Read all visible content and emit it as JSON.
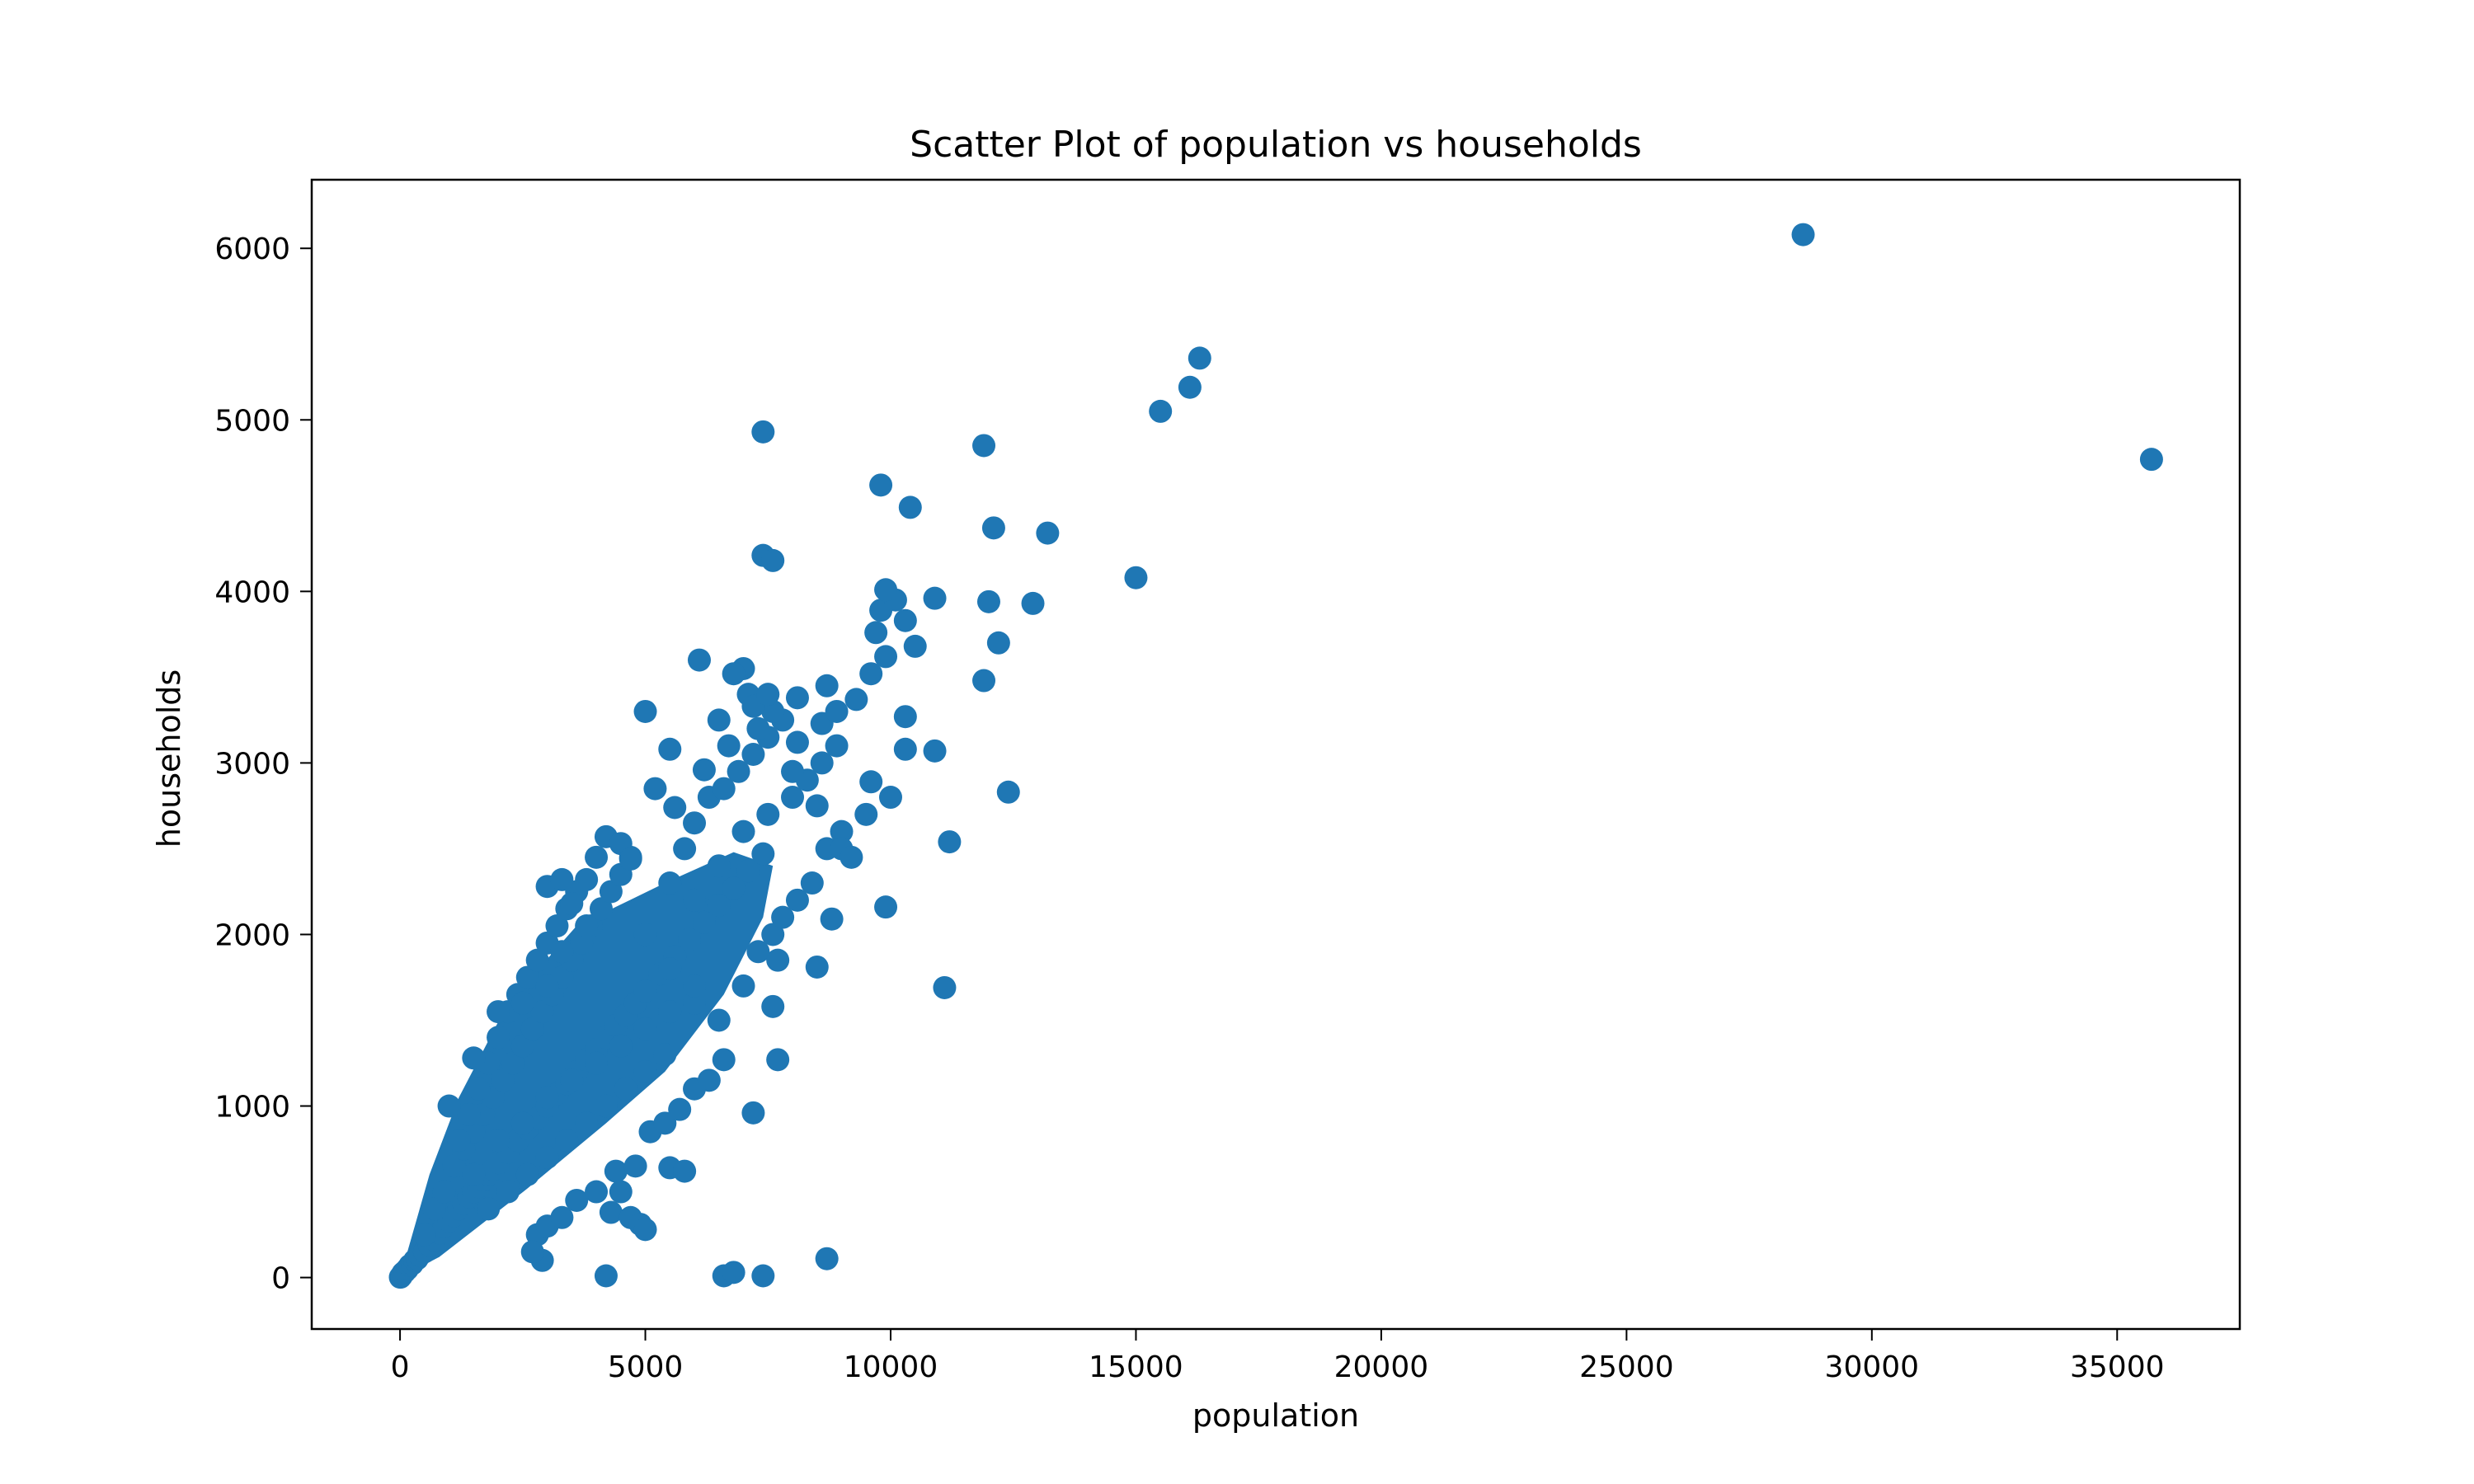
{
  "chart_data": {
    "type": "scatter",
    "title": "Scatter Plot of population vs households",
    "xlabel": "population",
    "ylabel": "households",
    "xlim": [
      -1800,
      37500
    ],
    "ylim": [
      -300,
      6400
    ],
    "xticks": [
      0,
      5000,
      10000,
      15000,
      20000,
      25000,
      30000,
      35000
    ],
    "yticks": [
      0,
      1000,
      2000,
      3000,
      4000,
      5000,
      6000
    ],
    "grid": false,
    "legend": false,
    "marker_color": "#1f77b4",
    "series": [
      {
        "name": "",
        "points": [
          [
            7,
            2
          ],
          [
            30,
            10
          ],
          [
            60,
            25
          ],
          [
            100,
            35
          ],
          [
            150,
            50
          ],
          [
            200,
            70
          ],
          [
            250,
            80
          ],
          [
            300,
            100
          ],
          [
            350,
            110
          ],
          [
            400,
            130
          ],
          [
            500,
            150
          ],
          [
            600,
            190
          ],
          [
            700,
            220
          ],
          [
            800,
            260
          ],
          [
            900,
            300
          ],
          [
            1000,
            330
          ],
          [
            1100,
            360
          ],
          [
            1200,
            400
          ],
          [
            1300,
            430
          ],
          [
            1400,
            470
          ],
          [
            1500,
            500
          ],
          [
            1600,
            530
          ],
          [
            1700,
            570
          ],
          [
            1800,
            600
          ],
          [
            1900,
            630
          ],
          [
            2000,
            670
          ],
          [
            2200,
            730
          ],
          [
            2400,
            800
          ],
          [
            2600,
            870
          ],
          [
            2800,
            930
          ],
          [
            3000,
            1000
          ],
          [
            3200,
            1070
          ],
          [
            3400,
            1130
          ],
          [
            3600,
            1200
          ],
          [
            3800,
            1270
          ],
          [
            4000,
            1330
          ],
          [
            4200,
            1400
          ],
          [
            4400,
            1470
          ],
          [
            4600,
            1530
          ],
          [
            4800,
            1600
          ],
          [
            5000,
            1670
          ],
          [
            5300,
            1770
          ],
          [
            5600,
            1870
          ],
          [
            5900,
            1970
          ],
          [
            6200,
            2070
          ],
          [
            6500,
            2170
          ],
          [
            6800,
            2270
          ],
          [
            7100,
            2370
          ],
          [
            7400,
            2470
          ],
          [
            500,
            250
          ],
          [
            700,
            400
          ],
          [
            900,
            500
          ],
          [
            1100,
            650
          ],
          [
            1300,
            750
          ],
          [
            1500,
            850
          ],
          [
            1700,
            950
          ],
          [
            1900,
            1050
          ],
          [
            2100,
            1150
          ],
          [
            2300,
            1250
          ],
          [
            2500,
            1350
          ],
          [
            2700,
            1450
          ],
          [
            2900,
            1550
          ],
          [
            3100,
            1650
          ],
          [
            3300,
            1750
          ],
          [
            3500,
            1850
          ],
          [
            3700,
            1950
          ],
          [
            3900,
            2050
          ],
          [
            4100,
            2150
          ],
          [
            4300,
            2250
          ],
          [
            4500,
            2350
          ],
          [
            4700,
            2450
          ],
          [
            1200,
            800
          ],
          [
            1400,
            950
          ],
          [
            1600,
            1100
          ],
          [
            1800,
            1250
          ],
          [
            2000,
            1400
          ],
          [
            2200,
            1550
          ],
          [
            2400,
            1650
          ],
          [
            2600,
            1750
          ],
          [
            2800,
            1850
          ],
          [
            3000,
            1950
          ],
          [
            3200,
            2050
          ],
          [
            3400,
            2150
          ],
          [
            3600,
            2250
          ],
          [
            3800,
            2320
          ],
          [
            3000,
            2280
          ],
          [
            3300,
            2320
          ],
          [
            3500,
            2180
          ],
          [
            4000,
            2450
          ],
          [
            4200,
            2570
          ],
          [
            4500,
            2530
          ],
          [
            4700,
            2440
          ],
          [
            3800,
            2050
          ],
          [
            3300,
            1900
          ],
          [
            1000,
            1000
          ],
          [
            1500,
            1280
          ],
          [
            2000,
            1550
          ],
          [
            2500,
            1600
          ],
          [
            3000,
            1700
          ],
          [
            5000,
            2000
          ],
          [
            5500,
            2300
          ],
          [
            5800,
            2500
          ],
          [
            6000,
            2650
          ],
          [
            6300,
            2800
          ],
          [
            6600,
            2850
          ],
          [
            6900,
            2950
          ],
          [
            7200,
            3050
          ],
          [
            7500,
            3150
          ],
          [
            7800,
            3250
          ],
          [
            6000,
            2200
          ],
          [
            6500,
            2400
          ],
          [
            7000,
            2600
          ],
          [
            7500,
            2700
          ],
          [
            8000,
            2800
          ],
          [
            8300,
            2900
          ],
          [
            8600,
            3000
          ],
          [
            8900,
            3100
          ],
          [
            5500,
            1800
          ],
          [
            6000,
            1600
          ],
          [
            6500,
            1500
          ],
          [
            7000,
            1700
          ],
          [
            7300,
            1900
          ],
          [
            7600,
            2000
          ],
          [
            7800,
            2100
          ],
          [
            8100,
            2200
          ],
          [
            8400,
            2300
          ],
          [
            8700,
            2500
          ],
          [
            9000,
            2600
          ],
          [
            1500,
            600
          ],
          [
            2000,
            800
          ],
          [
            2500,
            900
          ],
          [
            3000,
            1050
          ],
          [
            3500,
            1150
          ],
          [
            4000,
            1250
          ],
          [
            4500,
            1350
          ],
          [
            5000,
            1450
          ],
          [
            5500,
            1550
          ],
          [
            6000,
            1700
          ],
          [
            1800,
            400
          ],
          [
            2200,
            500
          ],
          [
            2600,
            600
          ],
          [
            3000,
            700
          ],
          [
            3400,
            800
          ],
          [
            3800,
            900
          ],
          [
            4200,
            1000
          ],
          [
            4600,
            1100
          ],
          [
            5000,
            1200
          ],
          [
            5400,
            1300
          ],
          [
            2800,
            250
          ],
          [
            3000,
            300
          ],
          [
            3300,
            350
          ],
          [
            3600,
            450
          ],
          [
            4000,
            500
          ],
          [
            4400,
            620
          ],
          [
            4800,
            650
          ],
          [
            5100,
            850
          ],
          [
            5400,
            900
          ],
          [
            5700,
            980
          ],
          [
            6000,
            1100
          ],
          [
            6300,
            1150
          ],
          [
            6600,
            1270
          ],
          [
            2900,
            100
          ],
          [
            2700,
            150
          ],
          [
            4200,
            10
          ],
          [
            4300,
            380
          ],
          [
            4500,
            500
          ],
          [
            4700,
            350
          ],
          [
            4900,
            310
          ],
          [
            5000,
            280
          ],
          [
            5500,
            640
          ],
          [
            5800,
            620
          ],
          [
            6600,
            10
          ],
          [
            6800,
            30
          ],
          [
            7400,
            10
          ],
          [
            8700,
            110
          ],
          [
            7200,
            960
          ],
          [
            7700,
            1270
          ],
          [
            7600,
            1580
          ],
          [
            7700,
            1850
          ],
          [
            8500,
            1810
          ],
          [
            8800,
            2090
          ],
          [
            9900,
            2160
          ],
          [
            11100,
            1690
          ],
          [
            5200,
            2850
          ],
          [
            5600,
            2740
          ],
          [
            6200,
            2960
          ],
          [
            6700,
            3100
          ],
          [
            7100,
            3400
          ],
          [
            7300,
            3200
          ],
          [
            7600,
            3300
          ],
          [
            8100,
            3120
          ],
          [
            8600,
            3230
          ],
          [
            8900,
            3300
          ],
          [
            9600,
            2890
          ],
          [
            10000,
            2800
          ],
          [
            8000,
            2950
          ],
          [
            8500,
            2750
          ],
          [
            9000,
            2500
          ],
          [
            9200,
            2450
          ],
          [
            9500,
            2700
          ],
          [
            7000,
            3550
          ],
          [
            7200,
            3330
          ],
          [
            6500,
            3250
          ],
          [
            5500,
            3080
          ],
          [
            5000,
            3300
          ],
          [
            6100,
            3600
          ],
          [
            6800,
            3520
          ],
          [
            7500,
            3400
          ],
          [
            8100,
            3380
          ],
          [
            8700,
            3450
          ],
          [
            9300,
            3370
          ],
          [
            9600,
            3520
          ],
          [
            9900,
            3620
          ],
          [
            10300,
            3080
          ],
          [
            10900,
            3070
          ],
          [
            10300,
            3270
          ],
          [
            10500,
            3680
          ],
          [
            10300,
            3830
          ],
          [
            9800,
            3890
          ],
          [
            10100,
            3950
          ],
          [
            9900,
            4010
          ],
          [
            9700,
            3760
          ],
          [
            10900,
            3960
          ],
          [
            11900,
            3480
          ],
          [
            12200,
            3700
          ],
          [
            12400,
            2830
          ],
          [
            11200,
            2540
          ],
          [
            12000,
            3940
          ],
          [
            12900,
            3930
          ],
          [
            12100,
            4370
          ],
          [
            13200,
            4340
          ],
          [
            15000,
            4080
          ],
          [
            11900,
            4850
          ],
          [
            10400,
            4490
          ],
          [
            9800,
            4620
          ],
          [
            7400,
            4210
          ],
          [
            7600,
            4180
          ],
          [
            7400,
            4930
          ],
          [
            15500,
            5050
          ],
          [
            16100,
            5190
          ],
          [
            16300,
            5360
          ],
          [
            28600,
            6080
          ],
          [
            35700,
            4770
          ]
        ]
      }
    ]
  }
}
